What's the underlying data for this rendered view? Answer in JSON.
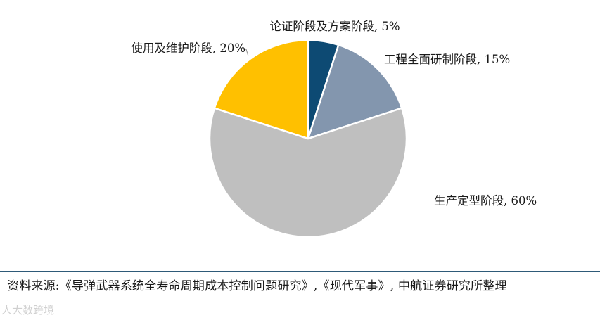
{
  "chart_data": {
    "type": "pie",
    "categories": [
      "论证阶段及方案阶段",
      "工程全面研制阶段",
      "生产定型阶段",
      "使用及维护阶段"
    ],
    "values": [
      5,
      15,
      60,
      20
    ],
    "labels": [
      "论证阶段及方案阶段, 5%",
      "工程全面研制阶段, 15%",
      "生产定型阶段, 60%",
      "使用及维护阶段, 20%"
    ],
    "colors": [
      "#0d4a73",
      "#8396ae",
      "#bfbfbf",
      "#ffc000"
    ],
    "start": "12 o'clock",
    "direction": "clockwise"
  },
  "source_note": "资料来源:《导弹武器系统全寿命周期成本控制问题研究》,《现代军事》, 中航证券研究所整理",
  "watermark": "人大数跨境"
}
